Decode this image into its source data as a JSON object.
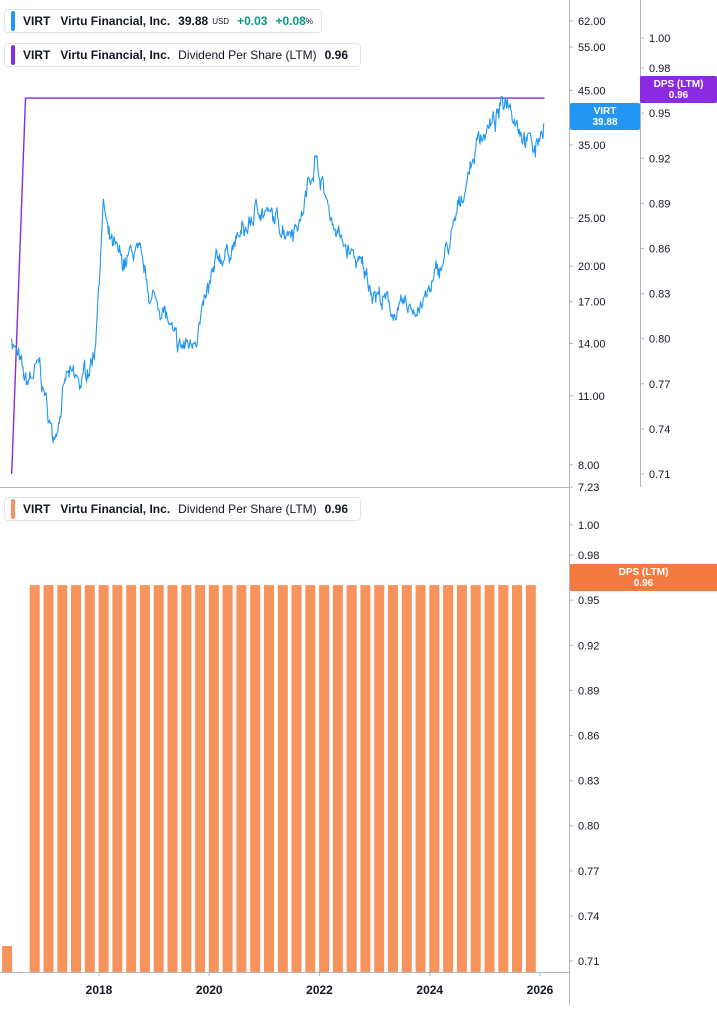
{
  "top_pane": {
    "price_legend": {
      "symbol": "VIRT",
      "name": "Virtu Financial, Inc.",
      "price": "39.88",
      "currency": "USD",
      "change": "+0.03",
      "change_pct": "+0.08",
      "pct_sign": "%"
    },
    "dps_legend": {
      "symbol": "VIRT",
      "name": "Virtu Financial, Inc.",
      "metric": "Dividend Per Share (LTM)",
      "value": "0.96"
    },
    "price_badge": {
      "symbol": "VIRT",
      "value": "39.88"
    },
    "dps_badge": {
      "label": "DPS (LTM)",
      "value": "0.96"
    }
  },
  "bottom_pane": {
    "dps_legend": {
      "symbol": "VIRT",
      "name": "Virtu Financial, Inc.",
      "metric": "Dividend Per Share (LTM)",
      "value": "0.96"
    },
    "dps_badge": {
      "label": "DPS (LTM)",
      "value": "0.96"
    }
  },
  "colors": {
    "price_line": "#2196f3",
    "dps_line": "#8a2be2",
    "dps_bars": "#f7935c",
    "badge_dps_bottom": "#f47b3f",
    "grid_axis": "#b2b5be",
    "change_positive": "#089981"
  },
  "chart_data": [
    {
      "type": "line",
      "title": "",
      "y_scale": "log",
      "price_axis_ticks": [
        "62.00",
        "55.00",
        "45.00",
        "35.00",
        "25.00",
        "20.00",
        "17.00",
        "14.00",
        "11.00",
        "8.00",
        "7.23"
      ],
      "dps_axis_ticks": [
        "1.00",
        "0.98",
        "0.95",
        "0.92",
        "0.89",
        "0.86",
        "0.83",
        "0.80",
        "0.77",
        "0.74",
        "0.71"
      ],
      "series": [
        {
          "name": "VIRT",
          "x": [
            "2016-06",
            "2016-09",
            "2016-12",
            "2017-03",
            "2017-06",
            "2017-09",
            "2017-12",
            "2018-02",
            "2018-03",
            "2018-06",
            "2018-09",
            "2018-12",
            "2019-03",
            "2019-06",
            "2019-09",
            "2019-12",
            "2020-03",
            "2020-06",
            "2020-09",
            "2020-12",
            "2021-03",
            "2021-06",
            "2021-09",
            "2021-12",
            "2022-03",
            "2022-06",
            "2022-09",
            "2022-12",
            "2023-03",
            "2023-06",
            "2023-09",
            "2023-12",
            "2024-03",
            "2024-06",
            "2024-09",
            "2024-12",
            "2025-03",
            "2025-06",
            "2025-09",
            "2025-12",
            "2026-02"
          ],
          "values": [
            14.5,
            11.5,
            12.5,
            9.0,
            12.0,
            11.5,
            13.5,
            27.0,
            22.5,
            20.0,
            21.5,
            17.5,
            16.5,
            13.5,
            14.0,
            16.5,
            20.5,
            22.0,
            23.5,
            26.5,
            24.5,
            24.0,
            25.0,
            33.5,
            26.0,
            22.0,
            20.5,
            18.5,
            17.0,
            16.0,
            16.5,
            17.0,
            19.5,
            23.0,
            30.0,
            37.0,
            38.5,
            44.0,
            38.0,
            34.0,
            39.88
          ]
        },
        {
          "name": "Dividend Per Share (LTM)",
          "x": [
            "2016-06",
            "2016-09",
            "2026-02"
          ],
          "values": [
            0.71,
            0.96,
            0.96
          ]
        }
      ]
    },
    {
      "type": "bar",
      "title": "",
      "x_tick_labels": [
        "2018",
        "2020",
        "2022",
        "2024",
        "2026"
      ],
      "dps_axis_ticks": [
        "1.00",
        "0.98",
        "0.95",
        "0.92",
        "0.89",
        "0.86",
        "0.83",
        "0.80",
        "0.77",
        "0.74",
        "0.71"
      ],
      "series": [
        {
          "name": "Dividend Per Share (LTM)",
          "x": [
            "2016-Q2",
            "2016-Q4",
            "2017-Q1",
            "2017-Q2",
            "2017-Q3",
            "2017-Q4",
            "2018-Q1",
            "2018-Q2",
            "2018-Q3",
            "2018-Q4",
            "2019-Q1",
            "2019-Q2",
            "2019-Q3",
            "2019-Q4",
            "2020-Q1",
            "2020-Q2",
            "2020-Q3",
            "2020-Q4",
            "2021-Q1",
            "2021-Q2",
            "2021-Q3",
            "2021-Q4",
            "2022-Q1",
            "2022-Q2",
            "2022-Q3",
            "2022-Q4",
            "2023-Q1",
            "2023-Q2",
            "2023-Q3",
            "2023-Q4",
            "2024-Q1",
            "2024-Q2",
            "2024-Q3",
            "2024-Q4",
            "2025-Q1",
            "2025-Q2",
            "2025-Q3",
            "2025-Q4"
          ],
          "values": [
            0.72,
            0.96,
            0.96,
            0.96,
            0.96,
            0.96,
            0.96,
            0.96,
            0.96,
            0.96,
            0.96,
            0.96,
            0.96,
            0.96,
            0.96,
            0.96,
            0.96,
            0.96,
            0.96,
            0.96,
            0.96,
            0.96,
            0.96,
            0.96,
            0.96,
            0.96,
            0.96,
            0.96,
            0.96,
            0.96,
            0.96,
            0.96,
            0.96,
            0.96,
            0.96,
            0.96,
            0.96,
            0.96
          ]
        }
      ]
    }
  ]
}
